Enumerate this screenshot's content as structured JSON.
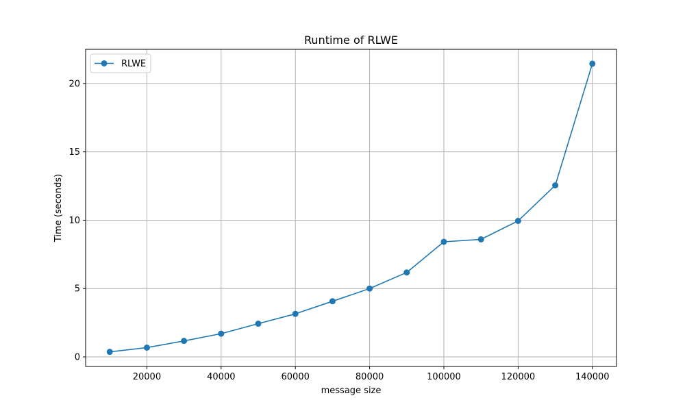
{
  "chart_data": {
    "type": "line",
    "title": "Runtime of RLWE",
    "xlabel": "message size",
    "ylabel": "Time (seconds)",
    "xlim": [
      3500,
      146500
    ],
    "ylim": [
      -0.7,
      22.5
    ],
    "xticks": [
      20000,
      40000,
      60000,
      80000,
      100000,
      120000,
      140000
    ],
    "yticks": [
      0,
      5,
      10,
      15,
      20
    ],
    "grid": true,
    "legend_position": "top-left",
    "series": [
      {
        "name": "RLWE",
        "color": "#1f77b4",
        "marker": "circle",
        "x": [
          10000,
          20000,
          30000,
          40000,
          50000,
          60000,
          70000,
          80000,
          90000,
          100000,
          110000,
          120000,
          130000,
          140000
        ],
        "y": [
          0.37,
          0.68,
          1.17,
          1.7,
          2.43,
          3.15,
          4.07,
          5.0,
          6.18,
          8.42,
          8.6,
          9.95,
          12.55,
          21.45
        ]
      }
    ]
  }
}
